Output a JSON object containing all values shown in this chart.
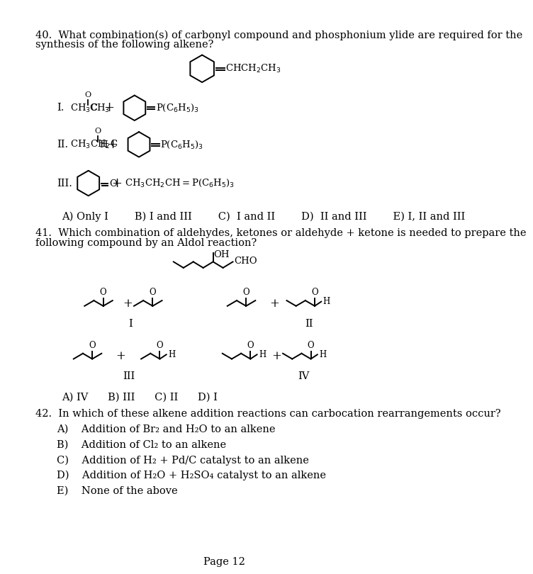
{
  "bg_color": "#ffffff",
  "page_width": 7.91,
  "page_height": 10.24,
  "q40_text1": "40.  What combination(s) of carbonyl compound and phosphonium ylide are required for the",
  "q40_text2": "synthesis of the following alkene?",
  "q40_ans": "A) Only I        B) I and III        C)  I and II        D)  II and III        E) I, II and III",
  "q41_text1": "41.  Which combination of aldehydes, ketones or aldehyde + ketone is needed to prepare the",
  "q41_text2": "following compound by an Aldol reaction?",
  "q41_ans": "A) IV      B) III      C) II      D) I",
  "q42_text": "42.  In which of these alkene addition reactions can carbocation rearrangements occur?",
  "q42_A": "A)    Addition of Br₂ and H₂O to an alkene",
  "q42_B": "B)    Addition of Cl₂ to an alkene",
  "q42_C": "C)    Addition of H₂ + Pd/C catalyst to an alkene",
  "q42_D": "D)    Addition of H₂O + H₂SO₄ catalyst to an alkene",
  "q42_E": "E)    None of the above",
  "page_label": "Page 12"
}
